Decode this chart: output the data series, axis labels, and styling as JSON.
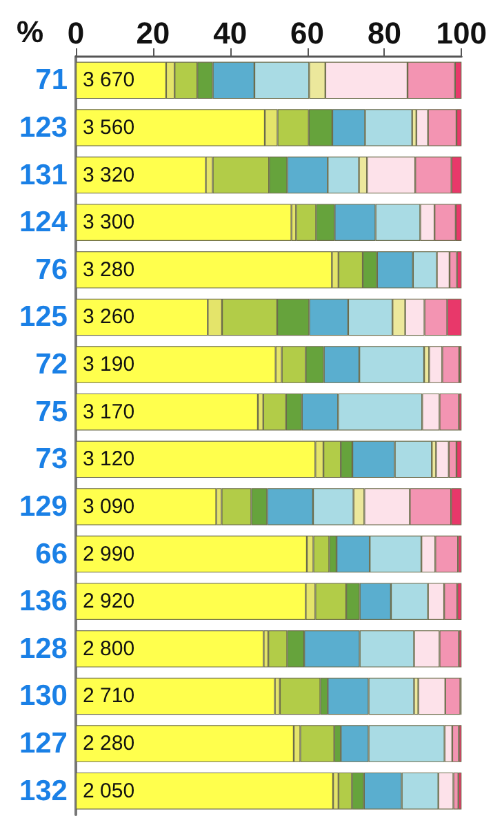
{
  "chart_data": {
    "type": "bar",
    "orientation": "horizontal",
    "stacked": true,
    "xlabel": "%",
    "categories": [
      "71",
      "123",
      "131",
      "124",
      "76",
      "125",
      "72",
      "75",
      "73",
      "129",
      "66",
      "136",
      "128",
      "130",
      "127",
      "132"
    ],
    "xlim": [
      0,
      100
    ],
    "xticks": [
      0,
      20,
      40,
      60,
      80,
      100
    ],
    "grid": false,
    "series": [
      {
        "color": "#ffff4d",
        "values": [
          23.4,
          49.0,
          33.7,
          55.9,
          66.4,
          34.2,
          51.8,
          47.2,
          62.1,
          36.4,
          59.9,
          59.6,
          48.7,
          51.6,
          56.5,
          66.7
        ]
      },
      {
        "color": "#e4e46a",
        "values": [
          2.2,
          3.3,
          1.8,
          1.2,
          1.7,
          3.7,
          1.6,
          1.4,
          2.1,
          1.4,
          1.7,
          2.5,
          1.2,
          1.3,
          1.7,
          1.4
        ]
      },
      {
        "color": "#b2cc48",
        "values": [
          5.9,
          8.1,
          14.6,
          5.2,
          6.3,
          14.3,
          6.2,
          5.9,
          4.5,
          7.7,
          4.1,
          8.0,
          4.9,
          10.5,
          8.8,
          3.5
        ]
      },
      {
        "color": "#66a33c",
        "values": [
          4.0,
          6.1,
          4.7,
          4.8,
          3.7,
          8.3,
          4.7,
          4.1,
          3.0,
          4.1,
          1.9,
          3.5,
          4.4,
          1.9,
          1.7,
          3.1
        ]
      },
      {
        "color": "#5aaecf",
        "values": [
          10.8,
          8.5,
          10.5,
          10.6,
          9.3,
          10.1,
          9.2,
          9.4,
          11.0,
          11.9,
          8.6,
          8.1,
          14.4,
          10.6,
          7.2,
          9.8
        ]
      },
      {
        "color": "#a9dbe4",
        "values": [
          14.2,
          12.2,
          8.1,
          11.6,
          6.2,
          11.5,
          16.8,
          21.8,
          9.6,
          10.5,
          13.4,
          9.6,
          14.1,
          11.8,
          19.7,
          9.5
        ]
      },
      {
        "color": "#ece89c",
        "values": [
          4.2,
          1.1,
          2.1,
          null,
          null,
          3.3,
          1.3,
          null,
          1.1,
          2.8,
          null,
          null,
          null,
          1.1,
          null,
          null
        ]
      },
      {
        "color": "#fde2ea",
        "values": [
          21.3,
          3.0,
          12.5,
          3.7,
          3.3,
          5.0,
          3.4,
          4.5,
          3.3,
          11.8,
          3.6,
          4.2,
          6.6,
          7.0,
          2.0,
          3.9
        ]
      },
      {
        "color": "#f394b2",
        "values": [
          12.3,
          7.4,
          9.4,
          5.5,
          1.9,
          5.9,
          4.4,
          5.0,
          2.0,
          10.7,
          5.9,
          3.4,
          5.0,
          3.9,
          1.7,
          1.3
        ]
      },
      {
        "color": "#e8386a",
        "values": [
          1.7,
          1.3,
          2.6,
          1.5,
          1.2,
          3.7,
          0.6,
          0.7,
          1.3,
          2.7,
          0.9,
          1.1,
          0.7,
          0.3,
          0.7,
          0.8
        ]
      }
    ],
    "annotations": [
      {
        "text": "3 670",
        "y": "71"
      },
      {
        "text": "3 560",
        "y": "123"
      },
      {
        "text": "3 320",
        "y": "131"
      },
      {
        "text": "3 300",
        "y": "124"
      },
      {
        "text": "3 280",
        "y": "76"
      },
      {
        "text": "3 260",
        "y": "125"
      },
      {
        "text": "3 190",
        "y": "72"
      },
      {
        "text": "3 170",
        "y": "75"
      },
      {
        "text": "3 120",
        "y": "73"
      },
      {
        "text": "3 090",
        "y": "129"
      },
      {
        "text": "2 990",
        "y": "66"
      },
      {
        "text": "2 920",
        "y": "136"
      },
      {
        "text": "2 800",
        "y": "128"
      },
      {
        "text": "2 710",
        "y": "130"
      },
      {
        "text": "2 280",
        "y": "127"
      },
      {
        "text": "2 050",
        "y": "132"
      }
    ]
  }
}
